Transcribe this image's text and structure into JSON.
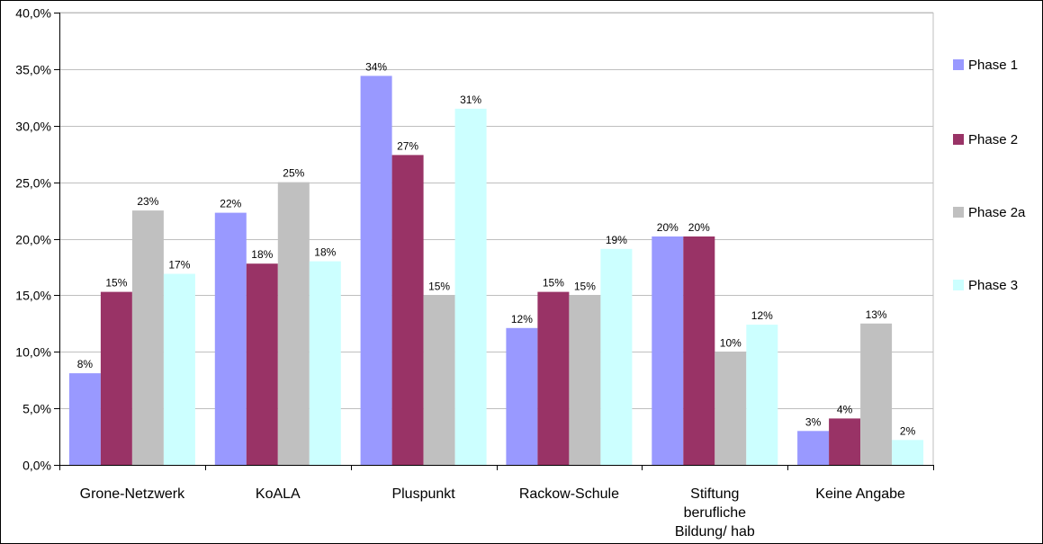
{
  "chart_data": {
    "type": "bar",
    "title": "",
    "xlabel": "",
    "ylabel": "",
    "categories": [
      [
        "Grone-Netzwerk"
      ],
      [
        "KoALA"
      ],
      [
        "Pluspunkt"
      ],
      [
        "Rackow-Schule"
      ],
      [
        "Stiftung",
        "berufliche",
        "Bildung/ hab"
      ],
      [
        "Keine Angabe"
      ]
    ],
    "series": [
      {
        "name": "Phase 1",
        "color": "#9999ff",
        "values": [
          8.1,
          22.3,
          34.4,
          12.1,
          20.2,
          3.0
        ],
        "labels": [
          "8%",
          "22%",
          "34%",
          "12%",
          "20%",
          "3%"
        ]
      },
      {
        "name": "Phase 2",
        "color": "#993366",
        "values": [
          15.3,
          17.8,
          27.4,
          15.3,
          20.2,
          4.1
        ],
        "labels": [
          "15%",
          "18%",
          "27%",
          "15%",
          "20%",
          "4%"
        ]
      },
      {
        "name": "Phase 2a",
        "color": "#c0c0c0",
        "values": [
          22.5,
          25.0,
          15.0,
          15.0,
          10.0,
          12.5
        ],
        "labels": [
          "23%",
          "25%",
          "15%",
          "15%",
          "10%",
          "13%"
        ]
      },
      {
        "name": "Phase 3",
        "color": "#ccffff",
        "values": [
          16.9,
          18.0,
          31.5,
          19.1,
          12.4,
          2.2
        ],
        "labels": [
          "17%",
          "18%",
          "31%",
          "19%",
          "12%",
          "2%"
        ]
      }
    ],
    "ylim": [
      0,
      40
    ],
    "yticks": [
      0,
      5,
      10,
      15,
      20,
      25,
      30,
      35,
      40
    ],
    "ytick_labels": [
      "0,0%",
      "5,0%",
      "10,0%",
      "15,0%",
      "20,0%",
      "25,0%",
      "30,0%",
      "35,0%",
      "40,0%"
    ],
    "grid": true,
    "legend_position": "right"
  }
}
